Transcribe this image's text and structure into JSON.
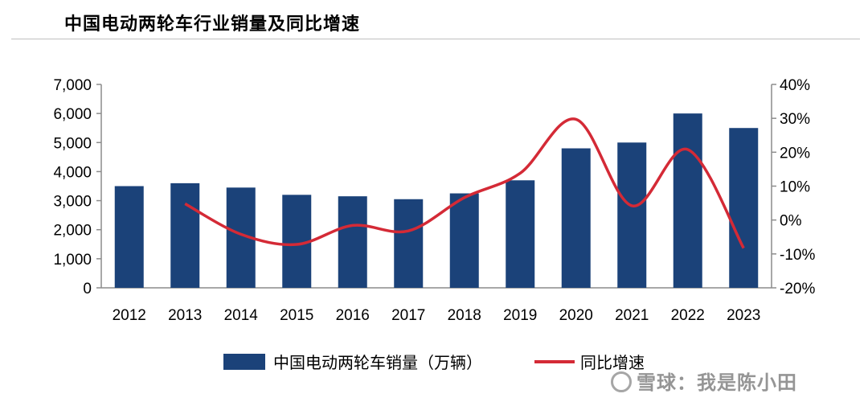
{
  "page_title": "中国电动两轮车行业销量及同比增速",
  "watermark": "雪球：我是陈小田",
  "colors": {
    "bar": "#1b4279",
    "line": "#d42a36",
    "axis": "#8c8c8c"
  },
  "chart_data": {
    "type": "bar+line",
    "categories": [
      "2012",
      "2013",
      "2014",
      "2015",
      "2016",
      "2017",
      "2018",
      "2019",
      "2020",
      "2021",
      "2022",
      "2023"
    ],
    "series": [
      {
        "name": "中国电动两轮车销量（万辆）",
        "type": "bar",
        "axis": "left",
        "values": [
          3500,
          3600,
          3450,
          3200,
          3150,
          3050,
          3250,
          3700,
          4800,
          5000,
          6000,
          5500
        ]
      },
      {
        "name": "同比增速",
        "type": "line",
        "axis": "right",
        "values": [
          null,
          4.8,
          -4.2,
          -7.2,
          -1.6,
          -3.2,
          6.6,
          13.8,
          29.7,
          4.2,
          20.8,
          -8.3
        ]
      }
    ],
    "left_axis": {
      "min": 0,
      "max": 7000,
      "ticks": [
        0,
        1000,
        2000,
        3000,
        4000,
        5000,
        6000,
        7000
      ],
      "tick_labels": [
        "0",
        "1,000",
        "2,000",
        "3,000",
        "4,000",
        "5,000",
        "6,000",
        "7,000"
      ]
    },
    "right_axis": {
      "min": -20,
      "max": 40,
      "ticks": [
        -20,
        -10,
        0,
        10,
        20,
        30,
        40
      ],
      "tick_labels": [
        "-20%",
        "-10%",
        "0%",
        "10%",
        "20%",
        "30%",
        "40%"
      ]
    },
    "grid": false,
    "legend_position": "bottom-center"
  }
}
